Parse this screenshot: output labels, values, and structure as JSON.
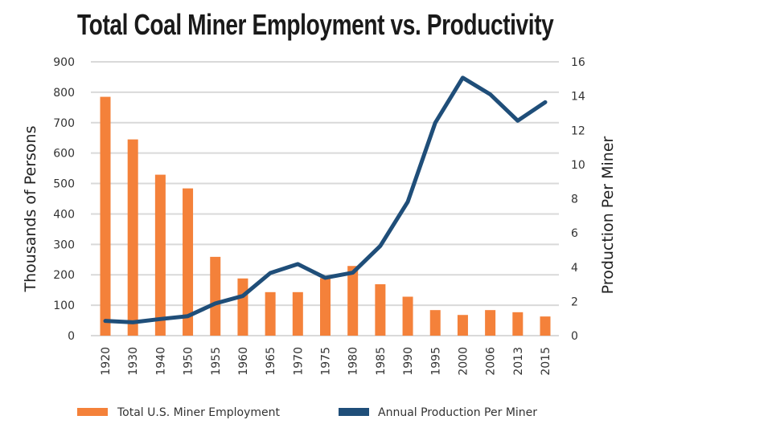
{
  "chart_data": {
    "type": "bar+line",
    "title": "Total Coal Miner Employment vs. Productivity",
    "categories": [
      "1920",
      "1930",
      "1940",
      "1950",
      "1955",
      "1960",
      "1965",
      "1970",
      "1975",
      "1980",
      "1985",
      "1990",
      "1995",
      "2000",
      "2006",
      "2013",
      "2015"
    ],
    "series": [
      {
        "name": "Total U.S. Miner Employment",
        "type": "bar",
        "axis": "left",
        "color": "#f4813a",
        "values": [
          785,
          645,
          529,
          484,
          259,
          188,
          143,
          143,
          189,
          229,
          169,
          128,
          84,
          68,
          84,
          77,
          63
        ]
      },
      {
        "name": "Annual Production Per Miner",
        "type": "line",
        "axis": "right",
        "color": "#1f4e79",
        "values": [
          0.86,
          0.78,
          0.97,
          1.14,
          1.88,
          2.32,
          3.66,
          4.18,
          3.38,
          3.68,
          5.24,
          7.82,
          12.44,
          15.07,
          14.1,
          12.56,
          13.64
        ]
      }
    ],
    "ylabel": "Thousands  of Persons",
    "y2label": "Production  Per Miner",
    "ylim": [
      0,
      900
    ],
    "y2lim": [
      0,
      16
    ],
    "yticks": [
      "0",
      "100",
      "200",
      "300",
      "400",
      "500",
      "600",
      "700",
      "800",
      "900"
    ],
    "y2ticks": [
      "0",
      "2",
      "4",
      "6",
      "8",
      "10",
      "12",
      "14",
      "16"
    ],
    "grid": true,
    "legend_placement": "bottom",
    "gridline_color": "#d9d9d9"
  }
}
